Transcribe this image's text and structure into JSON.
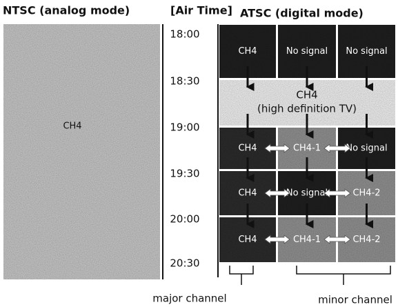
{
  "ntsc": {
    "title": "NTSC (analog mode)",
    "channel": "CH4"
  },
  "air_time": {
    "title": "[Air Time]",
    "times": [
      "18:00",
      "18:30",
      "19:00",
      "19:30",
      "20:00",
      "20:30"
    ]
  },
  "atsc": {
    "title": "ATSC (digital mode)",
    "rows": [
      [
        "CH4",
        "No signal",
        "No signal"
      ],
      [
        "CH4",
        "CH4-1",
        "No signal"
      ],
      [
        "CH4",
        "No signal",
        "CH4-2"
      ],
      [
        "CH4",
        "CH4-1",
        "CH4-2"
      ]
    ],
    "hd_row": {
      "line1": "CH4",
      "line2": "(high definition TV)"
    }
  },
  "footer": {
    "major": "major channel",
    "minor": "minor channel"
  }
}
